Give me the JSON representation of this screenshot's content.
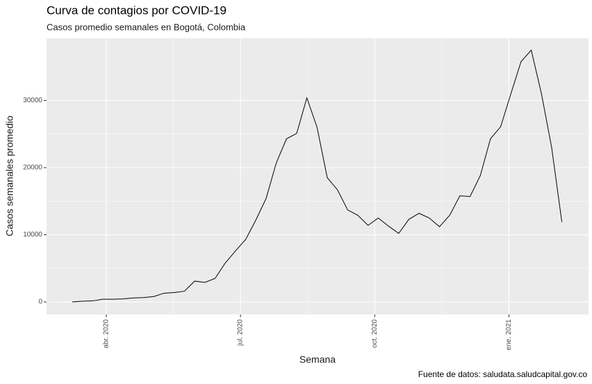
{
  "chart_data": {
    "type": "line",
    "title": "Curva de contagios por COVID-19",
    "subtitle": "Casos promedio semanales en Bogotá, Colombia",
    "x_label": "Semana",
    "y_label": "Casos semanales promedio",
    "caption": "Fuente de datos: saludata.saludcapital.gov.co",
    "x": [
      2.24,
      2.468,
      2.696,
      2.924,
      3.152,
      3.38,
      3.608,
      3.836,
      4.064,
      4.292,
      4.52,
      4.748,
      4.976,
      5.204,
      5.432,
      5.66,
      5.888,
      6.116,
      6.344,
      6.572,
      6.8,
      7.028,
      7.256,
      7.484,
      7.712,
      7.94,
      8.168,
      8.396,
      8.624,
      8.852,
      9.08,
      9.308,
      9.536,
      9.764,
      9.992,
      10.22,
      10.448,
      10.676,
      10.904,
      11.132,
      11.36,
      11.588,
      11.816,
      12.044,
      12.272,
      12.5,
      12.728,
      12.956,
      13.184
    ],
    "series": [
      {
        "name": "Casos semanales promedio",
        "color": "#000000",
        "values": [
          0,
          100,
          150,
          400,
          400,
          450,
          600,
          650,
          800,
          1300,
          1400,
          1600,
          3100,
          2900,
          3500,
          5800,
          7600,
          9300,
          12200,
          15400,
          20700,
          24300,
          25100,
          30400,
          26000,
          18500,
          16700,
          13700,
          12900,
          11400,
          12500,
          11300,
          10200,
          12300,
          13200,
          12500,
          11200,
          12900,
          15800,
          15700,
          18800,
          24300,
          26100,
          31000,
          35800,
          37500,
          31000,
          23000,
          11900
        ]
      }
    ],
    "xlim": [
      1.665,
      13.78
    ],
    "xticks": [
      {
        "value": 3,
        "label": "abr. 2020"
      },
      {
        "value": 6,
        "label": "jul. 2020"
      },
      {
        "value": 9,
        "label": "oct. 2020"
      },
      {
        "value": 12,
        "label": "ene. 2021"
      }
    ],
    "ylim": [
      -1865,
      39275
    ],
    "yticks": [
      0,
      10000,
      20000,
      30000
    ],
    "grid": true
  }
}
